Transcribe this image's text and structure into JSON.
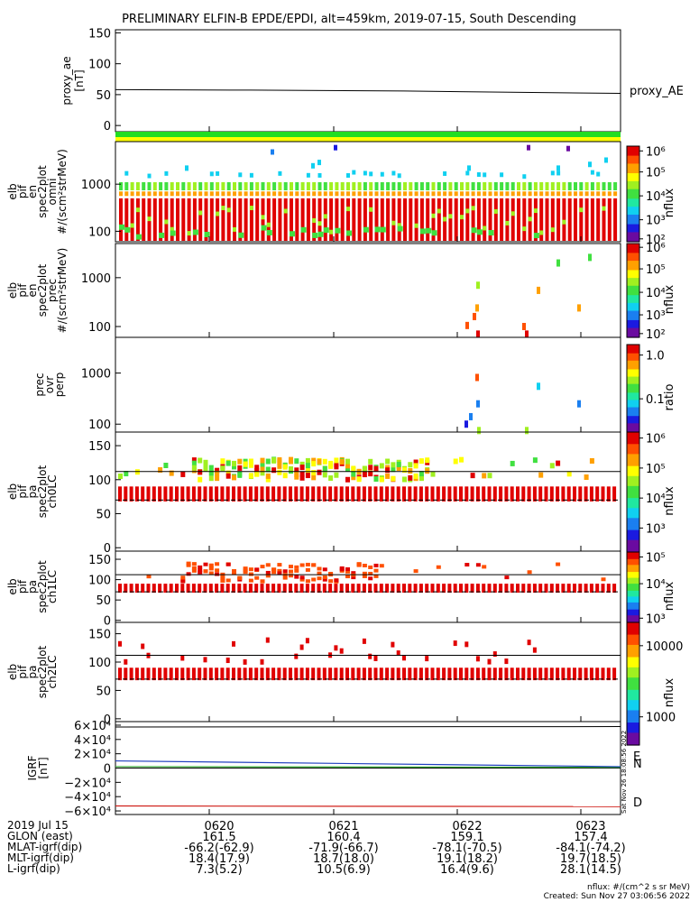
{
  "title": "PRELIMINARY ELFIN-B EPDE/EPDI, alt=459km, 2019-07-15, South Descending",
  "panels": {
    "ae": {
      "ylabel": [
        "proxy_ae",
        "[nT]"
      ],
      "ticks": [
        "150",
        "100",
        "50",
        "0"
      ],
      "legend": "proxy_AE"
    },
    "omni": {
      "ylabel": [
        "elb",
        "pif",
        "en",
        "spec2plot",
        "omni",
        "#/(scm²strMeV)"
      ],
      "ticks": [
        "1000",
        "100"
      ],
      "cbar_label": "nflux",
      "cbar_ticks": [
        "10⁶",
        "10⁵",
        "10⁴",
        "10³",
        "10²"
      ]
    },
    "prec": {
      "ylabel": [
        "elb",
        "pif",
        "en",
        "spec2plot",
        "prec",
        "#/(scm²strMeV)"
      ],
      "ticks": [
        "1000",
        "100"
      ],
      "cbar_label": "nflux",
      "cbar_ticks": [
        "10⁶",
        "10⁵",
        "10⁴",
        "10³",
        "10²"
      ]
    },
    "ratio": {
      "ylabel": [
        "prec",
        "ovr",
        "perp"
      ],
      "ticks": [
        "1000",
        "100"
      ],
      "cbar_label": "ratio",
      "cbar_ticks": [
        "1.0",
        "0.1"
      ]
    },
    "ch0": {
      "ylabel": [
        "elb",
        "pif",
        "pa",
        "spec2plot",
        "ch0LC"
      ],
      "ticks": [
        "150",
        "100",
        "50",
        "0"
      ],
      "cbar_label": "nflux",
      "cbar_ticks": [
        "10⁶",
        "10⁵",
        "10⁴",
        "10³"
      ]
    },
    "ch1": {
      "ylabel": [
        "elb",
        "pif",
        "pa",
        "spec2plot",
        "ch1LC"
      ],
      "ticks": [
        "150",
        "100",
        "50",
        "0"
      ],
      "cbar_label": "nflux",
      "cbar_ticks": [
        "10⁵",
        "10⁴",
        "10³"
      ]
    },
    "ch2": {
      "ylabel": [
        "elb",
        "pif",
        "pa",
        "spec2plot",
        "ch2LC"
      ],
      "ticks": [
        "150",
        "100",
        "50",
        "0"
      ],
      "cbar_label": "nflux",
      "cbar_ticks": [
        "10000",
        "1000"
      ]
    },
    "igrf": {
      "ylabel": [
        "IGRF",
        "[nT]"
      ],
      "ticks": [
        "6×10⁴",
        "4×10⁴",
        "2×10⁴",
        "0",
        "−2×10⁴",
        "−4×10⁴",
        "−6×10⁴"
      ],
      "legend": [
        "E",
        "N",
        "D"
      ],
      "side_stamp": "Sat Nov 26 18:08:56 2022"
    }
  },
  "chart_data": [
    {
      "type": "line",
      "name": "proxy_AE",
      "x": [
        0,
        1
      ],
      "y": [
        58,
        52
      ],
      "ylim": [
        -10,
        155
      ],
      "ylabel": "proxy_ae [nT]"
    },
    {
      "type": "heatmap",
      "name": "omni",
      "yscale": "log",
      "ylim": [
        60,
        8000
      ],
      "description_values": "spectrogram nflux 1e2-1e6"
    },
    {
      "type": "line",
      "name": "IGRF",
      "series": [
        {
          "name": "E",
          "color": "#2fa82f",
          "values": [
            2000,
            1000
          ]
        },
        {
          "name": "N",
          "color": "#1f3fbf",
          "values": [
            10000,
            2000
          ]
        },
        {
          "name": "D",
          "color": "#d0201a",
          "values": [
            -53000,
            -54000
          ]
        }
      ],
      "ylim": [
        -65000,
        65000
      ]
    }
  ],
  "footer": {
    "labels": [
      "2019 Jul 15",
      "GLON (east)",
      "MLAT-igrf(dip)",
      "MLT-igrf(dip)",
      "L-igrf(dip)"
    ],
    "columns": [
      {
        "time": "0620",
        "glon": "161.5",
        "mlat": "-66.2(-62.9)",
        "mlt": "18.4(17.9)",
        "l": "7.3(5.2)"
      },
      {
        "time": "0621",
        "glon": "160.4",
        "mlat": "-71.9(-66.7)",
        "mlt": "18.7(18.0)",
        "l": "10.5(6.9)"
      },
      {
        "time": "0622",
        "glon": "159.1",
        "mlat": "-78.1(-70.5)",
        "mlt": "19.1(18.2)",
        "l": "16.4(9.6)"
      },
      {
        "time": "0623",
        "glon": "157.4",
        "mlat": "-84.1(-74.2)",
        "mlt": "19.7(18.5)",
        "l": "28.1(14.5)"
      }
    ],
    "units": "nflux: #/(cm^2 s sr MeV)",
    "created": "Created: Sun Nov 27 03:06:56 2022"
  }
}
